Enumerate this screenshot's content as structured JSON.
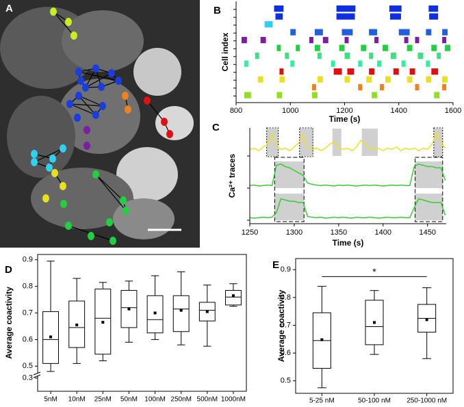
{
  "image_panel": {
    "panel": "A"
  },
  "chart_data": [
    {
      "type": "raster",
      "panel": "B",
      "xlabel": "Time (s)",
      "ylabel": "Cell index",
      "xlim": [
        800,
        1600
      ],
      "xticks": [
        800,
        1000,
        1200,
        1400,
        1600
      ],
      "rows": [
        {
          "color": "#1030e0",
          "events": [
            [
              940,
              975
            ],
            [
              1170,
              1240
            ],
            [
              1365,
              1410
            ],
            [
              1510,
              1545
            ]
          ]
        },
        {
          "color": "#1030e0",
          "events": [
            [
              945,
              972
            ],
            [
              1170,
              1238
            ],
            [
              1368,
              1408
            ],
            [
              1512,
              1545
            ]
          ]
        },
        {
          "color": "#30d0f0",
          "events": [
            [
              905,
              935
            ]
          ]
        },
        {
          "color": "#2060e0",
          "events": [
            [
              1000,
              1020
            ],
            [
              1090,
              1120
            ],
            [
              1190,
              1230
            ],
            [
              1290,
              1320
            ],
            [
              1400,
              1440
            ],
            [
              1500,
              1520
            ],
            [
              1560,
              1580
            ]
          ]
        },
        {
          "color": "#7b1fa2",
          "events": [
            [
              820,
              840
            ],
            [
              890,
              910
            ],
            [
              1070,
              1085
            ],
            [
              1120,
              1140
            ],
            [
              1200,
              1215
            ],
            [
              1310,
              1325
            ],
            [
              1420,
              1435
            ],
            [
              1460,
              1475
            ],
            [
              1560,
              1575
            ]
          ]
        },
        {
          "color": "#20d040",
          "events": [
            [
              950,
              965
            ],
            [
              1020,
              1035
            ],
            [
              1090,
              1110
            ],
            [
              1180,
              1200
            ],
            [
              1260,
              1280
            ],
            [
              1340,
              1360
            ],
            [
              1430,
              1450
            ],
            [
              1520,
              1540
            ],
            [
              1570,
              1590
            ]
          ]
        },
        {
          "color": "#40e080",
          "events": [
            [
              870,
              885
            ],
            [
              980,
              995
            ],
            [
              1100,
              1115
            ],
            [
              1200,
              1220
            ],
            [
              1290,
              1305
            ],
            [
              1370,
              1390
            ],
            [
              1470,
              1490
            ],
            [
              1540,
              1555
            ]
          ]
        },
        {
          "color": "#30f0a0",
          "events": [
            [
              830,
              845
            ],
            [
              1000,
              1015
            ],
            [
              1150,
              1165
            ],
            [
              1250,
              1265
            ],
            [
              1320,
              1335
            ],
            [
              1410,
              1425
            ],
            [
              1500,
              1515
            ]
          ]
        },
        {
          "color": "#e01010",
          "events": [
            [
              960,
              975
            ],
            [
              1160,
              1190
            ],
            [
              1210,
              1235
            ],
            [
              1290,
              1310
            ],
            [
              1380,
              1400
            ],
            [
              1440,
              1460
            ],
            [
              1520,
              1545
            ]
          ]
        },
        {
          "color": "#e8e020",
          "events": [
            [
              880,
              900
            ],
            [
              960,
              980
            ],
            [
              1100,
              1120
            ],
            [
              1200,
              1220
            ],
            [
              1280,
              1300
            ],
            [
              1350,
              1370
            ],
            [
              1430,
              1450
            ],
            [
              1500,
              1520
            ],
            [
              1560,
              1580
            ]
          ]
        },
        {
          "color": "#f08020",
          "events": [
            [
              1080,
              1095
            ],
            [
              1250,
              1265
            ],
            [
              1330,
              1345
            ],
            [
              1460,
              1475
            ],
            [
              1560,
              1575
            ]
          ]
        },
        {
          "color": "#90e020",
          "events": [
            [
              830,
              855
            ],
            [
              950,
              970
            ],
            [
              1080,
              1100
            ],
            [
              1300,
              1320
            ],
            [
              1530,
              1550
            ]
          ]
        }
      ]
    },
    {
      "type": "line",
      "panel": "C",
      "xlabel": "Time (s)",
      "ylabel": "Ca²⁺ traces",
      "xlim": [
        1250,
        1471
      ],
      "xticks": [
        1250,
        1300,
        1350,
        1400,
        1450
      ],
      "x": [
        1250,
        1255,
        1260,
        1265,
        1270,
        1275,
        1280,
        1285,
        1290,
        1295,
        1300,
        1305,
        1310,
        1315,
        1320,
        1325,
        1330,
        1335,
        1340,
        1345,
        1350,
        1355,
        1360,
        1365,
        1370,
        1375,
        1380,
        1385,
        1390,
        1395,
        1400,
        1405,
        1410,
        1415,
        1420,
        1425,
        1430,
        1435,
        1440,
        1445,
        1450,
        1455,
        1460,
        1465,
        1470
      ],
      "series": [
        {
          "color": "#f0e020",
          "values": [
            0.25,
            0.3,
            0.2,
            0.35,
            0.45,
            0.85,
            0.4,
            0.25,
            0.3,
            0.2,
            0.35,
            0.5,
            0.8,
            0.35,
            0.25,
            0.3,
            0.2,
            0.3,
            0.45,
            0.55,
            0.3,
            0.25,
            0.3,
            0.2,
            0.35,
            0.6,
            0.45,
            0.3,
            0.25,
            0.3,
            0.2,
            0.3,
            0.25,
            0.35,
            0.2,
            0.3,
            0.25,
            0.3,
            0.2,
            0.3,
            0.25,
            0.45,
            0.9,
            0.5,
            0.3
          ],
          "shaded": [
            [
              1269,
              1282
            ],
            [
              1306,
              1321
            ],
            [
              1343,
              1353
            ],
            [
              1376,
              1394
            ],
            [
              1457,
              1467
            ]
          ]
        },
        {
          "color": "#30d030",
          "values": [
            0.1,
            0.12,
            0.08,
            0.1,
            0.12,
            0.1,
            0.9,
            0.95,
            0.85,
            0.8,
            0.7,
            0.6,
            0.5,
            0.2,
            0.15,
            0.12,
            0.1,
            0.12,
            0.1,
            0.08,
            0.12,
            0.1,
            0.12,
            0.1,
            0.08,
            0.1,
            0.12,
            0.1,
            0.12,
            0.1,
            0.08,
            0.1,
            0.12,
            0.1,
            0.12,
            0.1,
            0.1,
            0.85,
            0.95,
            0.9,
            0.85,
            0.85,
            0.8,
            0.8,
            0.3
          ],
          "shaded": [
            [
              1278,
              1311
            ],
            [
              1436,
              1467
            ]
          ]
        },
        {
          "color": "#30d030",
          "values": [
            0.1,
            0.08,
            0.1,
            0.12,
            0.1,
            0.12,
            0.3,
            0.85,
            0.8,
            0.75,
            0.75,
            0.7,
            0.7,
            0.15,
            0.12,
            0.1,
            0.12,
            0.08,
            0.1,
            0.12,
            0.1,
            0.12,
            0.1,
            0.08,
            0.12,
            0.1,
            0.1,
            0.12,
            0.1,
            0.08,
            0.1,
            0.12,
            0.1,
            0.1,
            0.12,
            0.1,
            0.1,
            0.5,
            0.85,
            0.8,
            0.75,
            0.7,
            0.7,
            0.7,
            0.2
          ],
          "shaded": [
            [
              1278,
              1311
            ],
            [
              1436,
              1467
            ]
          ]
        }
      ],
      "dotted_boxes": [
        [
          1269,
          1282
        ],
        [
          1306,
          1321
        ],
        [
          1457,
          1467
        ]
      ],
      "dashed_boxes": [
        [
          1278,
          1311
        ],
        [
          1436,
          1467
        ]
      ]
    },
    {
      "type": "box",
      "panel": "D",
      "ylabel": "Average coactivity",
      "categories": [
        "5nM",
        "10nM",
        "25nM",
        "50nM",
        "100nM",
        "250nM",
        "500nM",
        "1000nM"
      ],
      "ylim": [
        0.475,
        0.92
      ],
      "yticks": [
        0.5,
        0.6,
        0.7,
        0.8,
        0.9
      ],
      "ylim_lower": [
        0.25,
        0.32
      ],
      "yticks_lower": [
        0.3
      ],
      "boxes": [
        {
          "min": 0.48,
          "q1": 0.51,
          "median": 0.6,
          "q3": 0.705,
          "max": 0.895,
          "mean": 0.61
        },
        {
          "min": 0.51,
          "q1": 0.57,
          "median": 0.645,
          "q3": 0.745,
          "max": 0.83,
          "mean": 0.655
        },
        {
          "min": 0.52,
          "q1": 0.545,
          "median": 0.68,
          "q3": 0.79,
          "max": 0.815,
          "mean": 0.665
        },
        {
          "min": 0.59,
          "q1": 0.645,
          "median": 0.72,
          "q3": 0.785,
          "max": 0.82,
          "mean": 0.715
        },
        {
          "min": 0.6,
          "q1": 0.625,
          "median": 0.675,
          "q3": 0.765,
          "max": 0.84,
          "mean": 0.7
        },
        {
          "min": 0.58,
          "q1": 0.63,
          "median": 0.715,
          "q3": 0.765,
          "max": 0.855,
          "mean": 0.71
        },
        {
          "min": 0.575,
          "q1": 0.67,
          "median": 0.71,
          "q3": 0.74,
          "max": 0.805,
          "mean": 0.705
        },
        {
          "min": 0.725,
          "q1": 0.73,
          "median": 0.76,
          "q3": 0.785,
          "max": 0.81,
          "mean": 0.765
        }
      ]
    },
    {
      "type": "box",
      "panel": "E",
      "ylabel": "Average coactivity",
      "categories": [
        "5-25 nM",
        "50-100 nM",
        "250-1000 nM"
      ],
      "ylim": [
        0.455,
        0.94
      ],
      "yticks": [
        0.5,
        0.6,
        0.7,
        0.8,
        0.9
      ],
      "boxes": [
        {
          "min": 0.475,
          "q1": 0.545,
          "median": 0.645,
          "q3": 0.745,
          "max": 0.84,
          "mean": 0.648
        },
        {
          "min": 0.595,
          "q1": 0.63,
          "median": 0.695,
          "q3": 0.79,
          "max": 0.825,
          "mean": 0.71
        },
        {
          "min": 0.58,
          "q1": 0.675,
          "median": 0.725,
          "q3": 0.775,
          "max": 0.835,
          "mean": 0.72
        }
      ],
      "significance": {
        "from": 0,
        "to": 2,
        "y": 0.875,
        "label": "*"
      }
    }
  ]
}
